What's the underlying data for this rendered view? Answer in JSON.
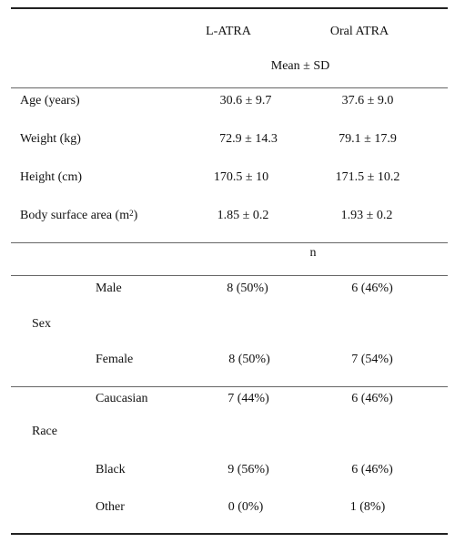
{
  "header": {
    "col1": "L-ATRA",
    "col2": "Oral ATRA",
    "stat_label": "Mean ± SD"
  },
  "continuous_rows": [
    {
      "label": "Age (years)",
      "latra": "30.6 ± 9.7",
      "oral": "37.6 ±  9.0"
    },
    {
      "label": "Weight (kg)",
      "latra": "72.9 ± 14.3",
      "oral": "79.1 ± 17.9"
    },
    {
      "label": "Height (cm)",
      "latra": "170.5 ± 10",
      "oral": "171.5 ± 10.2"
    },
    {
      "label_main": "Body surface area (m",
      "label_sup": "2",
      "label_end": ")",
      "latra": "1.85 ±  0.2",
      "oral": "1.93 ±  0.2"
    }
  ],
  "count_label": "n",
  "sex": {
    "group": "Sex",
    "rows": [
      {
        "label": "Male",
        "latra": "8 (50%)",
        "oral": "6  (46%)"
      },
      {
        "label": "Female",
        "latra": "8  (50%)",
        "oral": "7  (54%)"
      }
    ]
  },
  "race": {
    "group": "Race",
    "rows": [
      {
        "label": "Caucasian",
        "latra": "7  (44%)",
        "oral": "6  (46%)"
      },
      {
        "label": "Black",
        "latra": "9  (56%)",
        "oral": "6  (46%)"
      },
      {
        "label": "Other",
        "latra": "0  (0%)",
        "oral": "1  (8%)"
      }
    ]
  }
}
